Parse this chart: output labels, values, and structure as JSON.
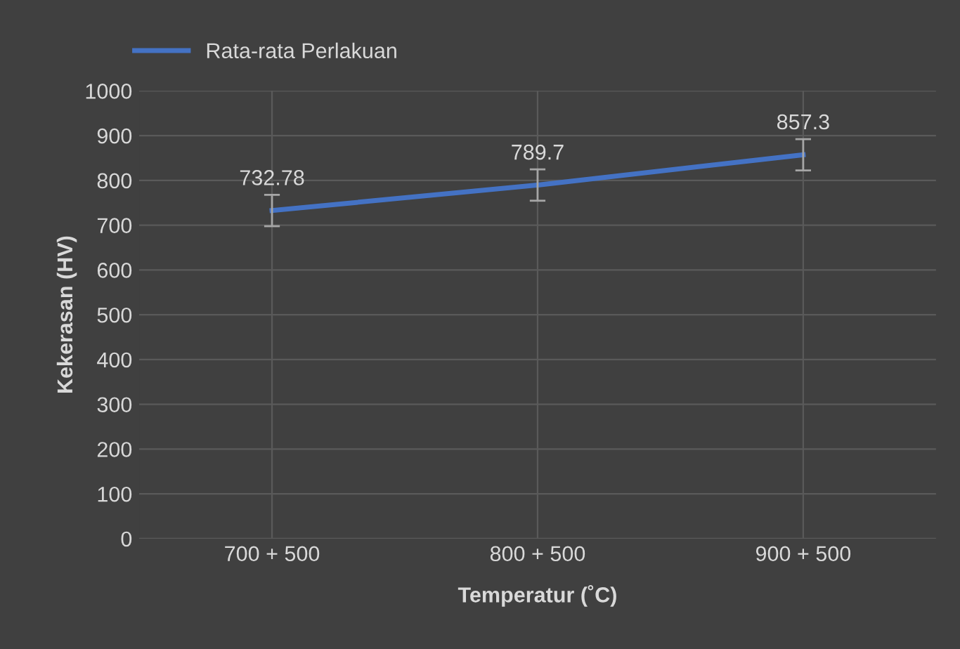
{
  "chart_data": {
    "type": "line",
    "xlabel": "Temperatur (˚C)",
    "ylabel": "Kekerasan (HV)",
    "categories": [
      "700 + 500",
      "800 + 500",
      "900 + 500"
    ],
    "series": [
      {
        "name": "Rata-rata Perlakuan",
        "color": "#4472c4",
        "values": [
          732.78,
          789.7,
          857.3
        ],
        "errors": [
          35,
          35,
          35
        ]
      }
    ],
    "ylim": [
      0,
      1000
    ],
    "yticks": [
      0,
      100,
      200,
      300,
      400,
      500,
      600,
      700,
      800,
      900,
      1000
    ],
    "grid": true,
    "legend": "top left",
    "data_labels": true,
    "marker": "none"
  }
}
